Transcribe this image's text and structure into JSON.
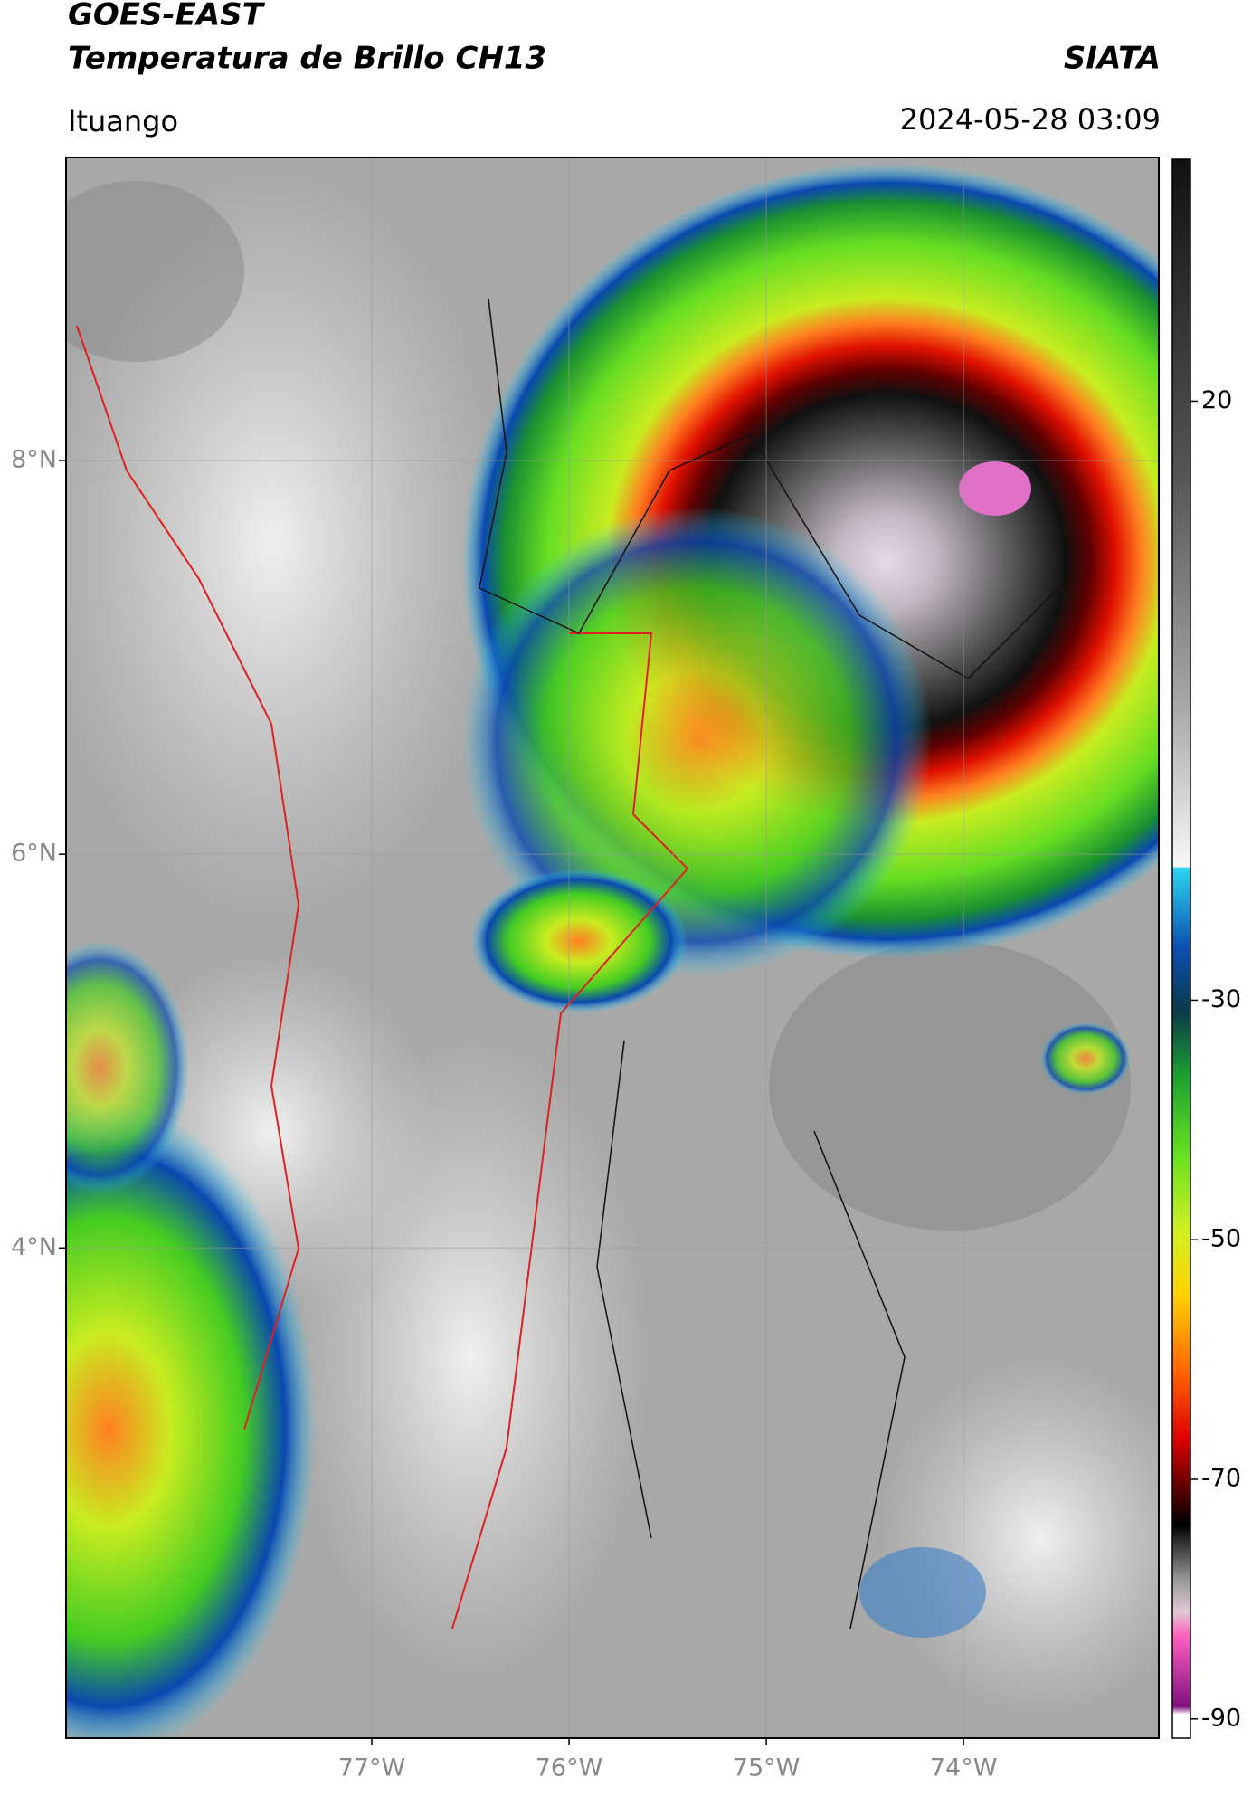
{
  "header": {
    "satellite": "GOES-EAST",
    "product": "Temperatura de Brillo CH13",
    "agency": "SIATA",
    "location": "Ituango",
    "timestamp": "2024-05-28 03:09"
  },
  "map": {
    "lonlim": [
      -78.55,
      -73.01
    ],
    "latlim": [
      1.51,
      9.54
    ],
    "lonticks": [
      {
        "value": -77,
        "label": "77°W"
      },
      {
        "value": -76,
        "label": "76°W"
      },
      {
        "value": -75,
        "label": "75°W"
      },
      {
        "value": -74,
        "label": "74°W"
      }
    ],
    "latticks": [
      {
        "value": 8,
        "label": "8°N"
      },
      {
        "value": 6,
        "label": "6°N"
      },
      {
        "value": 4,
        "label": "4°N"
      }
    ],
    "grid": true
  },
  "colorbar": {
    "lim": [
      -91.6,
      40.2
    ],
    "ticks": [
      20,
      -30,
      -50,
      -70,
      -90
    ]
  }
}
